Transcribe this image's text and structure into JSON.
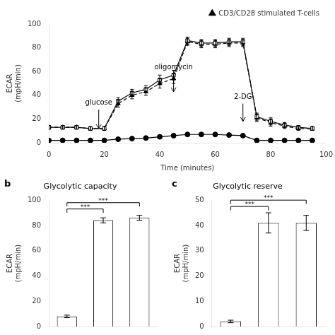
{
  "chart_data": [
    {
      "type": "line",
      "xlabel": "Time (minutes)",
      "ylabel": "ECAR\n(mpH/min)",
      "x": [
        0,
        5,
        10,
        15,
        20,
        25,
        30,
        35,
        40,
        45,
        50,
        55,
        60,
        65,
        70,
        75,
        80,
        85,
        90,
        95
      ],
      "series": [
        {
          "values": [
            13,
            13,
            13,
            12,
            12,
            35,
            42,
            45,
            53,
            57,
            86,
            84,
            84,
            85,
            85,
            22,
            18,
            15,
            13,
            12
          ],
          "errors": [
            1.5,
            1.5,
            1.5,
            1.5,
            1.5,
            3,
            3,
            3,
            4,
            4,
            3,
            3,
            3,
            3,
            3,
            3,
            3,
            2,
            1.5,
            1.5
          ],
          "color": "#000000",
          "marker": "square-open",
          "line_style": "solid"
        },
        {
          "name": "CD3/CD28 stimulated T-cells",
          "values": [
            13,
            13,
            13,
            12,
            12,
            33,
            40,
            43,
            50,
            54,
            85,
            83,
            83,
            84,
            84,
            21,
            17,
            14,
            12,
            12
          ],
          "errors": [
            1.5,
            1.5,
            1.5,
            1.5,
            1.5,
            3,
            3,
            3,
            4,
            4,
            3,
            3,
            3,
            3,
            3,
            3,
            3,
            2,
            1.5,
            1.5
          ],
          "color": "#000000",
          "marker": "triangle",
          "line_style": "dashed"
        },
        {
          "values": [
            2,
            2,
            2,
            2,
            2,
            3,
            3.5,
            4,
            5,
            6,
            7,
            7,
            7,
            6.5,
            6,
            2,
            2,
            2,
            2,
            2
          ],
          "errors": [
            0.3,
            0.3,
            0.3,
            0.3,
            0.3,
            0.4,
            0.4,
            0.5,
            0.5,
            0.6,
            0.6,
            0.6,
            0.6,
            0.5,
            0.5,
            0.3,
            0.3,
            0.3,
            0.3,
            0.3
          ],
          "color": "#000000",
          "marker": "circle",
          "line_style": "solid"
        }
      ],
      "xlim": [
        0,
        100
      ],
      "xticks": [
        0,
        20,
        40,
        60,
        80,
        100
      ],
      "ylim": [
        0,
        100
      ],
      "yticks": [
        0,
        20,
        40,
        60,
        80,
        100
      ],
      "grid": false,
      "legend": "top-right",
      "annotations": [
        {
          "text": "glucose",
          "x": 18,
          "y": 30,
          "arrow_from": 28,
          "arrow_to": 12
        },
        {
          "text": "oligomycin",
          "x": 45,
          "y": 60,
          "arrow_from": 58,
          "arrow_to": 43
        },
        {
          "text": "2-DG",
          "x": 70,
          "y": 35,
          "arrow_from": 33,
          "arrow_to": 18
        }
      ]
    },
    {
      "type": "bar",
      "title": "Glycolytic capacity",
      "ylabel": "ECAR\n(mpH/min)",
      "categories": [
        null,
        null,
        null
      ],
      "values": [
        8,
        84,
        86
      ],
      "errors": [
        1,
        2,
        2
      ],
      "color": "#ffffff",
      "ylim": [
        0,
        100
      ],
      "yticks": [
        0,
        20,
        40,
        60,
        80,
        100
      ],
      "grid": false,
      "tick_labels": "y",
      "annotations": [
        {
          "text": "b"
        },
        {
          "text": "***",
          "from": 0,
          "to": 1,
          "y": [
            90,
            93
          ]
        },
        {
          "text": "***",
          "from": 0,
          "to": 2,
          "y": [
            95,
            98
          ]
        }
      ]
    },
    {
      "type": "bar",
      "title": "Glycolytic reserve",
      "ylabel": "ECAR\n(mpH/min)",
      "categories": [
        null,
        null,
        null
      ],
      "values": [
        2,
        41,
        41
      ],
      "errors": [
        0.5,
        4,
        3
      ],
      "color": "#ffffff",
      "ylim": [
        0,
        50
      ],
      "yticks": [
        0,
        10,
        20,
        30,
        40,
        50
      ],
      "grid": false,
      "tick_labels": "y",
      "annotations": [
        {
          "text": "c"
        },
        {
          "text": "***",
          "from": 0,
          "to": 1,
          "y": [
            46,
            47.5
          ]
        },
        {
          "text": "***",
          "from": 0,
          "to": 2,
          "y": [
            48.5,
            50
          ]
        }
      ]
    }
  ]
}
